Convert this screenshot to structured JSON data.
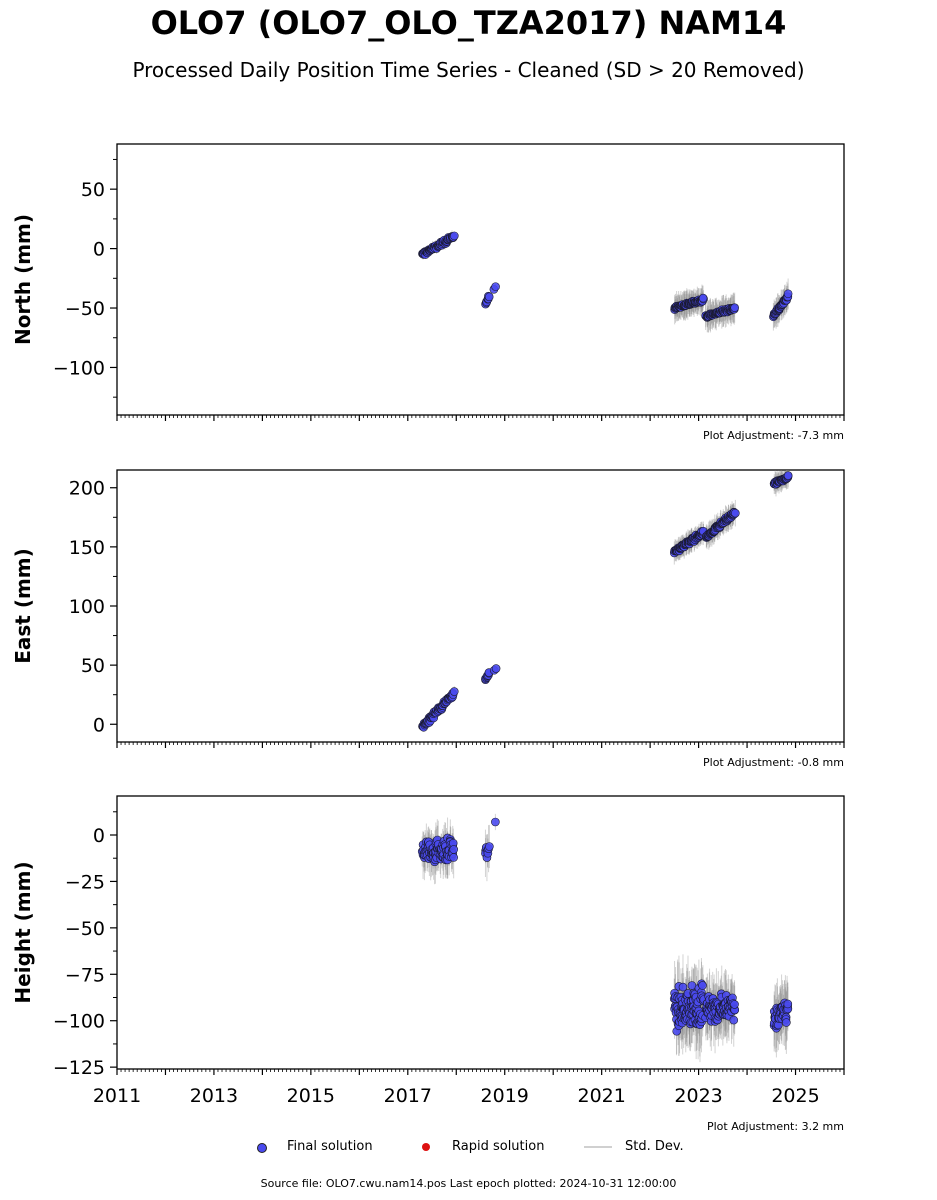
{
  "title": "OLO7 (OLO7_OLO_TZA2017) NAM14",
  "subtitle": "Processed Daily Position Time Series - Cleaned (SD > 20 Removed)",
  "footer": "Source file: OLO7.cwu.nam14.pos  Last epoch plotted: 2024-10-31 12:00:00",
  "legend": {
    "final": "Final solution",
    "rapid": "Rapid solution",
    "std": "Std. Dev."
  },
  "colors": {
    "final": "#4a4aee",
    "rapid": "#dd1111",
    "std": "#808080"
  },
  "chart_data": [
    {
      "type": "scatter",
      "ylabel": "North (mm)",
      "adjustment": "Plot Adjustment: -7.3 mm",
      "xlim": [
        2011,
        2026
      ],
      "ylim": [
        -140,
        88
      ],
      "yticks": [
        50,
        0,
        -50,
        -100
      ],
      "ytick_labels": [
        "50",
        "0",
        "−50",
        "−100"
      ],
      "show_xticklabels": false,
      "clusters": [
        {
          "t0": 2017.3,
          "t1": 2017.95,
          "y0": -5,
          "y1": 10,
          "n": 70,
          "sd": 4
        },
        {
          "t0": 2018.6,
          "t1": 2018.68,
          "y0": -46,
          "y1": -40,
          "n": 8,
          "sd": 3
        },
        {
          "t0": 2018.78,
          "t1": 2018.82,
          "y0": -34,
          "y1": -32,
          "n": 2,
          "sd": 2
        },
        {
          "t0": 2022.5,
          "t1": 2023.1,
          "y0": -50,
          "y1": -43,
          "n": 90,
          "sd": 10
        },
        {
          "t0": 2023.15,
          "t1": 2023.75,
          "y0": -57,
          "y1": -50,
          "n": 80,
          "sd": 11
        },
        {
          "t0": 2024.55,
          "t1": 2024.85,
          "y0": -56,
          "y1": -40,
          "n": 40,
          "sd": 11
        }
      ]
    },
    {
      "type": "scatter",
      "ylabel": "East (mm)",
      "adjustment": "Plot Adjustment: -0.8 mm",
      "xlim": [
        2011,
        2026
      ],
      "ylim": [
        -15,
        215
      ],
      "yticks": [
        200,
        150,
        100,
        50,
        0
      ],
      "ytick_labels": [
        "200",
        "150",
        "100",
        "50",
        "0"
      ],
      "show_xticklabels": false,
      "clusters": [
        {
          "t0": 2017.3,
          "t1": 2017.95,
          "y0": -2,
          "y1": 26,
          "n": 70,
          "sd": 4
        },
        {
          "t0": 2018.6,
          "t1": 2018.68,
          "y0": 37,
          "y1": 44,
          "n": 8,
          "sd": 3
        },
        {
          "t0": 2018.78,
          "t1": 2018.82,
          "y0": 45,
          "y1": 47,
          "n": 2,
          "sd": 2
        },
        {
          "t0": 2022.5,
          "t1": 2023.1,
          "y0": 146,
          "y1": 162,
          "n": 90,
          "sd": 8
        },
        {
          "t0": 2023.15,
          "t1": 2023.75,
          "y0": 158,
          "y1": 179,
          "n": 80,
          "sd": 9
        },
        {
          "t0": 2024.55,
          "t1": 2024.85,
          "y0": 203,
          "y1": 209,
          "n": 40,
          "sd": 8
        }
      ]
    },
    {
      "type": "scatter",
      "ylabel": "Height (mm)",
      "adjustment": "Plot Adjustment: 3.2 mm",
      "xlim": [
        2011,
        2026
      ],
      "ylim": [
        -126,
        21
      ],
      "yticks": [
        0,
        -25,
        -50,
        -75,
        -100,
        -125
      ],
      "ytick_labels": [
        "0",
        "−25",
        "−50",
        "−75",
        "−100",
        "−125"
      ],
      "show_xticklabels": true,
      "xticks": [
        2011,
        2013,
        2015,
        2017,
        2019,
        2021,
        2023,
        2025
      ],
      "xtick_labels": [
        "2011",
        "2013",
        "2015",
        "2017",
        "2019",
        "2021",
        "2023",
        "2025"
      ],
      "clusters": [
        {
          "t0": 2017.3,
          "t1": 2017.95,
          "y0": -8,
          "y1": -8,
          "n": 90,
          "sd": 10,
          "spread": 18
        },
        {
          "t0": 2018.6,
          "t1": 2018.68,
          "y0": -10,
          "y1": -8,
          "n": 8,
          "sd": 10,
          "spread": 12
        },
        {
          "t0": 2018.78,
          "t1": 2018.82,
          "y0": 7,
          "y1": 7,
          "n": 1,
          "sd": 6,
          "spread": 0
        },
        {
          "t0": 2022.5,
          "t1": 2023.1,
          "y0": -95,
          "y1": -92,
          "n": 110,
          "sd": 16,
          "spread": 30
        },
        {
          "t0": 2023.15,
          "t1": 2023.75,
          "y0": -94,
          "y1": -92,
          "n": 90,
          "sd": 14,
          "spread": 18
        },
        {
          "t0": 2024.55,
          "t1": 2024.85,
          "y0": -98,
          "y1": -95,
          "n": 45,
          "sd": 14,
          "spread": 20
        }
      ]
    }
  ]
}
